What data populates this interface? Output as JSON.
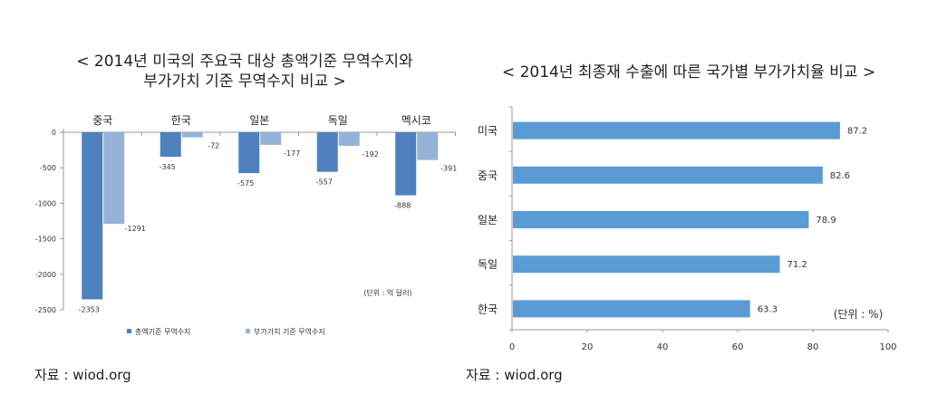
{
  "chart_data": [
    {
      "type": "bar",
      "title_line1": "< 2014년 미국의 주요국 대상 총액기준 무역수지와",
      "title_line2": "부가가치 기준 무역수지 비교 >",
      "categories": [
        "중국",
        "한국",
        "일본",
        "독일",
        "멕시코"
      ],
      "series": [
        {
          "name": "총액기준 무역수지",
          "color": "#4f81bd",
          "values": [
            -2353,
            -345,
            -575,
            -557,
            -888
          ]
        },
        {
          "name": "부가가치 기준 무역수지",
          "color": "#95b3d7",
          "values": [
            -1291,
            -72,
            -177,
            -192,
            -391
          ]
        }
      ],
      "yticks": [
        "0",
        "-500",
        "-1000",
        "-1500",
        "-2000",
        "-2500"
      ],
      "ylim": [
        -2500,
        0
      ],
      "unit": "(단위 : 억 달러)",
      "legend": "bottom",
      "source": "자료 : wiod.org"
    },
    {
      "type": "bar",
      "orientation": "horizontal",
      "title": "< 2014년 최종재 수출에 따른 국가별 부가가치율 비교 >",
      "categories": [
        "미국",
        "중국",
        "일본",
        "독일",
        "한국"
      ],
      "values": [
        87.2,
        82.6,
        78.9,
        71.2,
        63.3
      ],
      "value_labels": [
        "87.2",
        "82.6",
        "78.9",
        "71.2",
        "63.3"
      ],
      "color": "#5b9bd5",
      "xticks": [
        "0",
        "20",
        "40",
        "60",
        "80",
        "100"
      ],
      "xlim": [
        0,
        100
      ],
      "unit": "(단위 : %)",
      "source": "자료 : wiod.org"
    }
  ]
}
